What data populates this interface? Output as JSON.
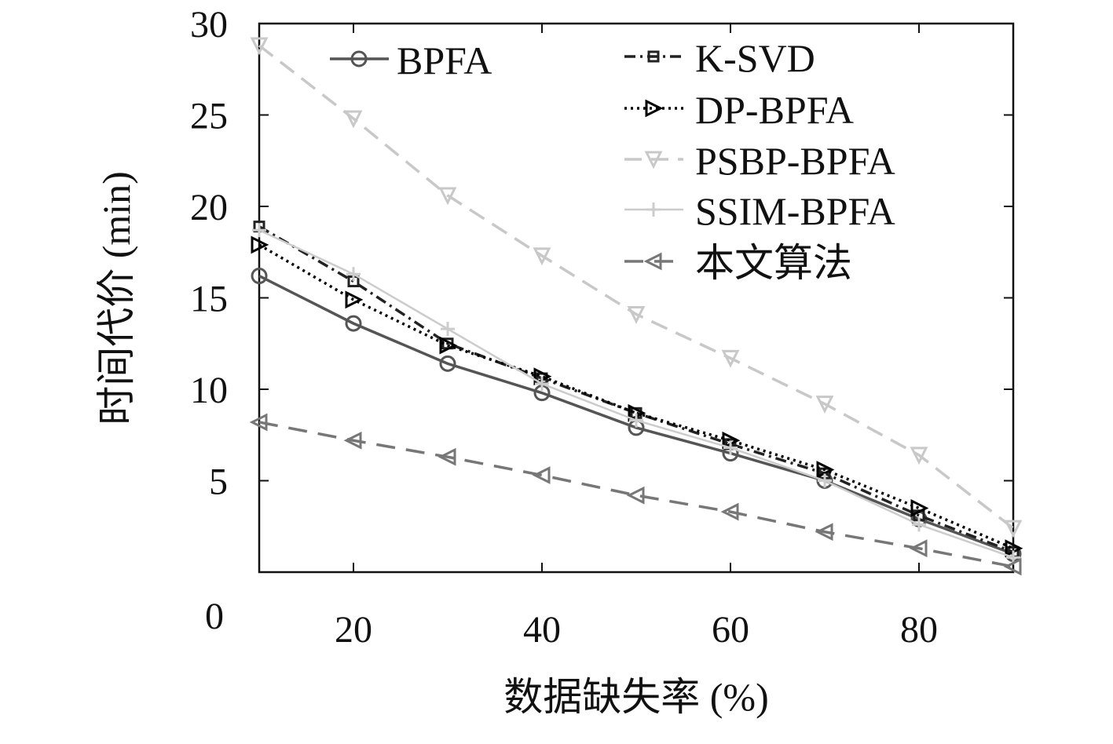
{
  "chart_data": {
    "type": "line",
    "x_label": "数据缺失率 (%)",
    "y_label": "时间代价 (min)",
    "x": [
      10,
      20,
      30,
      40,
      50,
      60,
      70,
      80,
      90
    ],
    "xlim": [
      10,
      90
    ],
    "xticks": [
      20,
      40,
      60,
      80
    ],
    "ylim": [
      0,
      30
    ],
    "yticks": [
      0,
      5,
      10,
      15,
      20,
      25,
      30
    ],
    "series": [
      {
        "name": "BPFA",
        "color": "#555555",
        "values": [
          16.2,
          13.6,
          11.4,
          9.8,
          7.9,
          6.5,
          5.0,
          2.9,
          1.0
        ]
      },
      {
        "name": "K-SVD",
        "color": "#222222",
        "values": [
          18.9,
          15.9,
          12.5,
          10.6,
          8.7,
          7.0,
          5.4,
          3.1,
          1.1
        ]
      },
      {
        "name": "DP-BPFA",
        "color": "#000000",
        "values": [
          17.9,
          14.9,
          12.4,
          10.7,
          8.7,
          7.2,
          5.6,
          3.5,
          1.3
        ]
      },
      {
        "name": "PSBP-BPFA",
        "color": "#c8c8c8",
        "values": [
          28.8,
          24.8,
          20.6,
          17.3,
          14.1,
          11.7,
          9.2,
          6.4,
          2.4
        ]
      },
      {
        "name": "SSIM-BPFA",
        "color": "#cccccc",
        "values": [
          18.7,
          16.3,
          13.3,
          10.3,
          8.3,
          6.8,
          5.0,
          2.6,
          0.8
        ]
      },
      {
        "name": "本文算法",
        "color": "#777777",
        "values": [
          8.2,
          7.2,
          6.3,
          5.3,
          4.2,
          3.3,
          2.2,
          1.3,
          0.3
        ]
      }
    ]
  }
}
